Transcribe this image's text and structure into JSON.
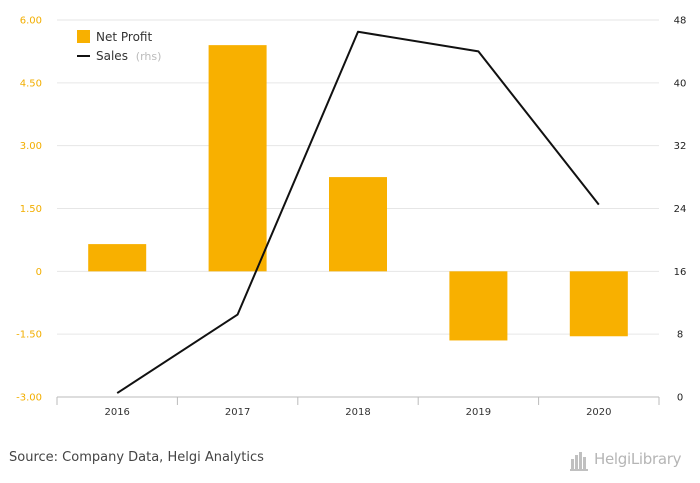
{
  "chart_data": {
    "type": "bar",
    "categories": [
      "2016",
      "2017",
      "2018",
      "2019",
      "2020"
    ],
    "series": [
      {
        "name": "Net Profit",
        "type": "bar",
        "axis": "left",
        "values": [
          0.65,
          5.4,
          2.25,
          -1.65,
          -1.55
        ]
      },
      {
        "name": "Sales",
        "type": "line",
        "axis": "right",
        "values": [
          0.5,
          10.5,
          46.5,
          44.0,
          24.5
        ]
      }
    ],
    "left_axis": {
      "ticks": [
        "6.00",
        "4.50",
        "3.00",
        "1.50",
        "0",
        "-1.50",
        "-3.00"
      ],
      "tick_values": [
        6,
        4.5,
        3,
        1.5,
        0,
        -1.5,
        -3
      ],
      "ylim": [
        -3,
        6
      ]
    },
    "right_axis": {
      "ticks": [
        "48",
        "40",
        "32",
        "24",
        "16",
        "8",
        "0"
      ],
      "tick_values": [
        48,
        40,
        32,
        24,
        16,
        8,
        0
      ],
      "ylim": [
        0,
        48
      ]
    },
    "legend": {
      "items": [
        {
          "label": "Net Profit",
          "suffix": ""
        },
        {
          "label": "Sales",
          "suffix": "(rhs)"
        }
      ],
      "placement": "top-left"
    },
    "grid": true,
    "colors": {
      "bar": "#f8b000",
      "line": "#111111",
      "grid": "#e6e6e6",
      "left_ticks": "#f2ae00"
    }
  },
  "footer": {
    "source": "Source: Company Data, Helgi Analytics",
    "brand": "HelgiLibrary"
  }
}
